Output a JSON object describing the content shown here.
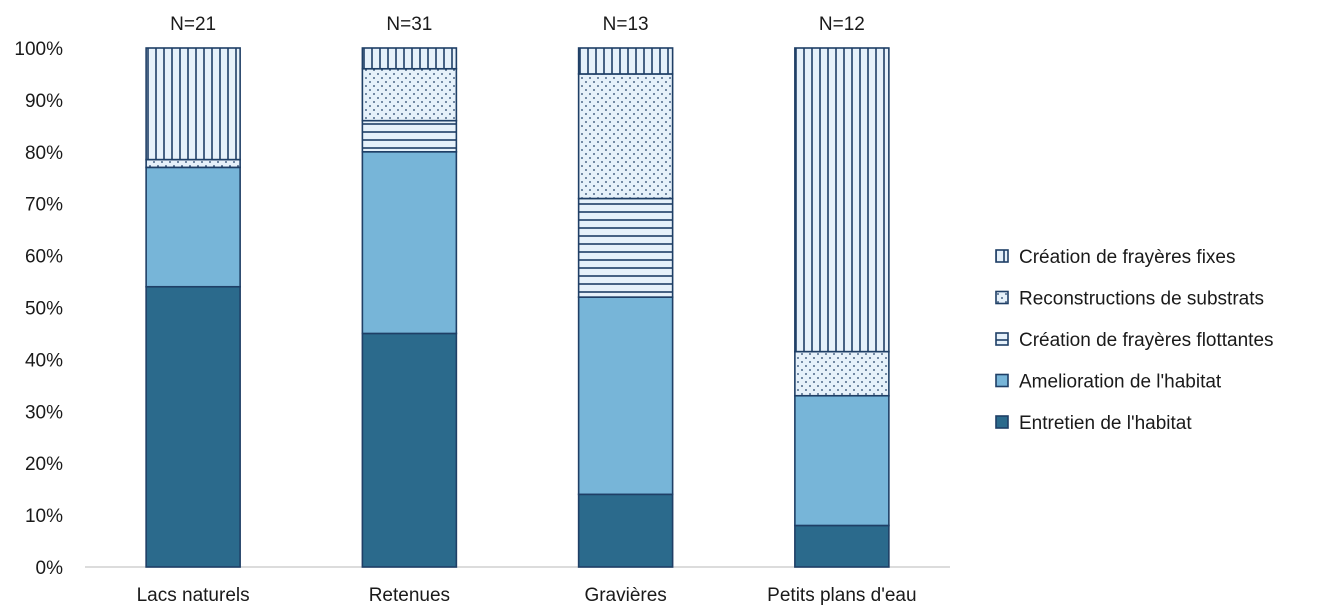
{
  "chart_data": {
    "type": "bar",
    "stacked": true,
    "title": "",
    "xlabel": "",
    "ylabel": "",
    "ylim": [
      0,
      100
    ],
    "y_tick_step": 10,
    "y_tick_suffix": "%",
    "grid": false,
    "legend_position": "right",
    "categories": [
      "Lacs naturels",
      "Retenues",
      "Gravières",
      "Petits plans d'eau"
    ],
    "counts": [
      "N=21",
      "N=31",
      "N=13",
      "N=12"
    ],
    "series": [
      {
        "name": "Entretien de l'habitat",
        "values": [
          54,
          45,
          14,
          8
        ],
        "color": "#2b6a8c",
        "pattern": "solid"
      },
      {
        "name": "Amelioration de l'habitat",
        "values": [
          23,
          35,
          38,
          25
        ],
        "color": "#77b5d8",
        "pattern": "solid"
      },
      {
        "name": "Création de frayères flottantes",
        "values": [
          0,
          6,
          19,
          0
        ],
        "color": "#e6f1fa",
        "pattern": "horizontal"
      },
      {
        "name": "Reconstructions de substrats",
        "values": [
          1.5,
          10,
          24,
          8.5
        ],
        "color": "#e6f1fa",
        "pattern": "dots"
      },
      {
        "name": "Création de frayères fixes",
        "values": [
          21.5,
          4,
          5,
          58.5
        ],
        "color": "#e6f1fa",
        "pattern": "vertical"
      }
    ],
    "edge_color": "#1f3f66"
  }
}
